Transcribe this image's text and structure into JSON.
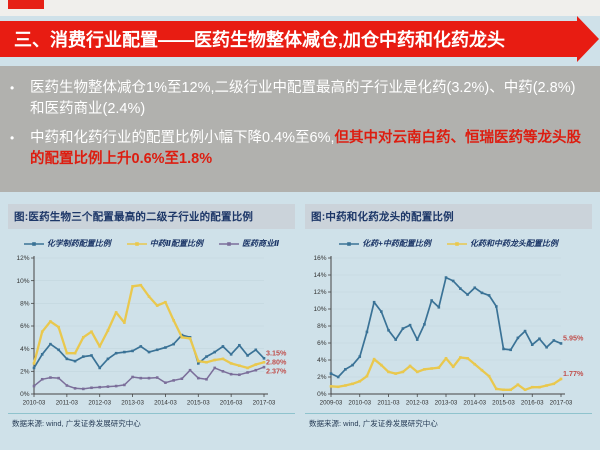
{
  "slide": {
    "title": "三、消费行业配置——医药生物整体减仓,加仓中药和化药龙头",
    "bullets": [
      {
        "text": "医药生物整体减仓1%至12%,二级行业中配置最高的子行业是化药(3.2%)、中药(2.8%)和医药商业(2.4%)",
        "highlight": ""
      },
      {
        "text": "中药和化药行业的配置比例小幅下降0.4%至6%,",
        "highlight": "但其中对云南白药、恒瑞医药等龙头股的配置比例上升0.6%至1.8%"
      }
    ],
    "bullet_marker": "•"
  },
  "colors": {
    "banner_red": "#e81c12",
    "highlight_red": "#dd1d10",
    "band_gray": "#b1b1ae",
    "slide_bg": "#cfe1e9",
    "panel_title_bg": "#cbd3da",
    "navy": "#1d3768",
    "axis": "#444444",
    "grid": "#c2d5dd",
    "end_label_red": "#c0504d",
    "rule_teal": "#8fc3cd"
  },
  "chart_data": [
    {
      "type": "line",
      "title": "图:医药生物三个配置最高的二级子行业的配置比例",
      "source_note": "数据来源: wind, 广发证券发展研究中心",
      "legend_position": "top",
      "grid": true,
      "ylim": [
        0,
        12
      ],
      "ytick_step": 2,
      "ytick_suffix": "%",
      "x": [
        "2010-03",
        "2010-06",
        "2010-09",
        "2010-12",
        "2011-03",
        "2011-06",
        "2011-09",
        "2011-12",
        "2012-03",
        "2012-06",
        "2012-09",
        "2012-12",
        "2013-03",
        "2013-06",
        "2013-09",
        "2013-12",
        "2014-03",
        "2014-06",
        "2014-09",
        "2014-12",
        "2015-03",
        "2015-06",
        "2015-09",
        "2015-12",
        "2016-03",
        "2016-06",
        "2016-09",
        "2016-12",
        "2017-03"
      ],
      "x_tick_labels": [
        "2010-03",
        "2011-03",
        "2012-03",
        "2013-03",
        "2014-03",
        "2015-03",
        "2016-03",
        "2017-03"
      ],
      "series": [
        {
          "name": "化学制药配置比例",
          "color": "#3a7296",
          "width": 1.7,
          "end_label": "3.15%",
          "values": [
            2.3,
            3.5,
            4.4,
            3.9,
            3.1,
            2.9,
            3.3,
            3.4,
            2.3,
            3.1,
            3.6,
            3.7,
            3.8,
            4.2,
            3.7,
            3.9,
            4.1,
            4.4,
            5.2,
            5.0,
            2.7,
            3.3,
            3.7,
            4.2,
            3.5,
            4.3,
            3.4,
            3.9,
            3.15
          ]
        },
        {
          "name": "中药Ⅱ配置比例",
          "color": "#e9c84e",
          "width": 2.3,
          "end_label": "2.80%",
          "values": [
            2.7,
            5.5,
            6.4,
            5.9,
            3.6,
            3.6,
            5.0,
            5.5,
            4.2,
            5.6,
            7.2,
            6.3,
            9.5,
            9.6,
            8.6,
            7.8,
            8.1,
            6.5,
            5.0,
            4.9,
            2.9,
            2.8,
            3.0,
            3.1,
            2.7,
            2.5,
            2.3,
            2.6,
            2.8
          ]
        },
        {
          "name": "医药商业Ⅱ",
          "color": "#7b6e9a",
          "width": 1.5,
          "end_label": "2.37%",
          "values": [
            0.7,
            1.3,
            1.45,
            1.4,
            0.75,
            0.5,
            0.45,
            0.55,
            0.6,
            0.65,
            0.7,
            0.8,
            1.5,
            1.4,
            1.4,
            1.45,
            1.0,
            1.2,
            1.35,
            2.1,
            1.4,
            1.3,
            2.3,
            2.0,
            1.75,
            1.7,
            1.9,
            2.1,
            2.37
          ]
        }
      ]
    },
    {
      "type": "line",
      "title": "图:中药和化药龙头的配置比例",
      "source_note": "数据来源: wind, 广发证券发展研究中心",
      "legend_position": "top",
      "grid": true,
      "ylim": [
        0,
        16
      ],
      "ytick_step": 2,
      "ytick_suffix": "%",
      "x": [
        "2009-03",
        "2009-06",
        "2009-09",
        "2009-12",
        "2010-03",
        "2010-06",
        "2010-09",
        "2010-12",
        "2011-03",
        "2011-06",
        "2011-09",
        "2011-12",
        "2012-03",
        "2012-06",
        "2012-09",
        "2012-12",
        "2013-03",
        "2013-06",
        "2013-09",
        "2013-12",
        "2014-03",
        "2014-06",
        "2014-09",
        "2014-12",
        "2015-03",
        "2015-06",
        "2015-09",
        "2015-12",
        "2016-03",
        "2016-06",
        "2016-09",
        "2016-12",
        "2017-03"
      ],
      "x_tick_labels": [
        "2009-03",
        "2010-03",
        "2011-03",
        "2012-03",
        "2013-03",
        "2014-03",
        "2015-03",
        "2016-03",
        "2017-03"
      ],
      "series": [
        {
          "name": "化药+中药配置比例",
          "color": "#3a7296",
          "width": 1.7,
          "end_label": "5.95%",
          "values": [
            2.4,
            2.0,
            2.9,
            3.4,
            4.4,
            7.3,
            10.8,
            9.7,
            7.5,
            6.4,
            7.7,
            8.1,
            6.4,
            8.2,
            11.0,
            10.2,
            13.7,
            13.3,
            12.4,
            11.7,
            12.5,
            11.9,
            11.6,
            10.3,
            5.3,
            5.2,
            6.6,
            7.4,
            5.8,
            6.5,
            5.5,
            6.3,
            5.95
          ]
        },
        {
          "name": "化药和中药龙头配置比例",
          "color": "#e9c84e",
          "width": 2.3,
          "end_label": "1.77%",
          "values": [
            0.9,
            0.85,
            1.0,
            1.2,
            1.5,
            2.1,
            4.1,
            3.4,
            2.6,
            2.4,
            2.6,
            3.3,
            2.6,
            2.9,
            3.0,
            3.1,
            4.2,
            3.2,
            4.3,
            4.2,
            3.5,
            2.8,
            2.1,
            0.6,
            0.5,
            0.5,
            1.1,
            0.5,
            0.8,
            0.8,
            1.0,
            1.2,
            1.77
          ]
        }
      ]
    }
  ]
}
